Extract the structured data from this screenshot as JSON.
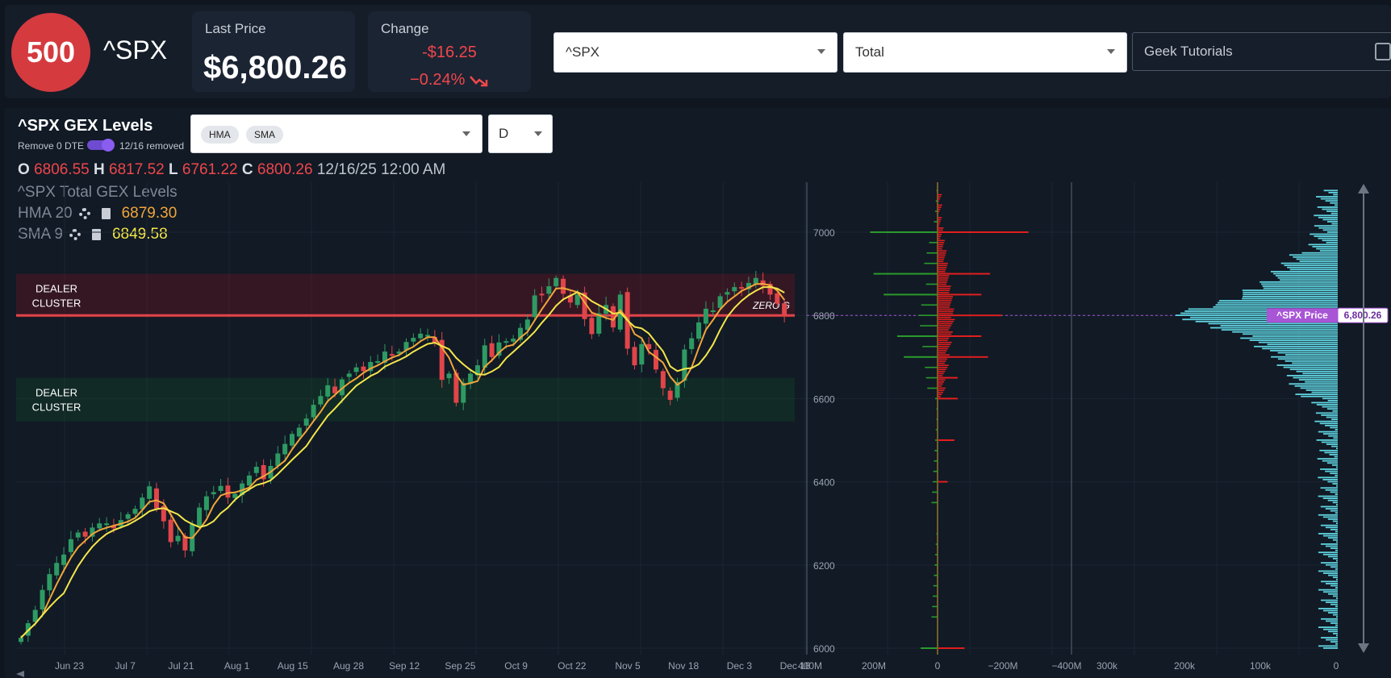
{
  "header": {
    "badge": "500",
    "ticker": "^SPX",
    "last_price_label": "Last Price",
    "last_price": "$6,800.26",
    "change_label": "Change",
    "change_abs": "-$16.25",
    "change_pct": "−0.24%",
    "symbol_select": "^SPX",
    "type_select": "Total",
    "tutorials": "Geek Tutorials"
  },
  "panel": {
    "title": "^SPX GEX Levels",
    "remove_label": "Remove 0 DTE",
    "removed_label": "12/16 removed",
    "indicators": [
      "HMA",
      "SMA"
    ],
    "interval": "D"
  },
  "ohlc": {
    "o_label": "O",
    "o": "6806.55",
    "h_label": "H",
    "h": "6817.52",
    "l_label": "L",
    "l": "6761.22",
    "c_label": "C",
    "c": "6800.26",
    "datetime": "12/16/25 12:00 AM"
  },
  "legend": {
    "series": "^SPX Total GEX Levels",
    "hma_label": "HMA",
    "hma_period": "20",
    "hma_value": "6879.30",
    "sma_label": "SMA",
    "sma_period": "9",
    "sma_value": "6849.58"
  },
  "colors": {
    "up": "#2e9a63",
    "down": "#e0454a",
    "hma": "#f2a53a",
    "sma": "#f5e64a",
    "gex_pos": "#2b9a2b",
    "gex_neg": "#e01e1e",
    "volume": "#5fd3e0",
    "price_tag": "#a855d6"
  },
  "chart_data": {
    "type": "candlestick",
    "x_labels": [
      "Jun 23",
      "Jul 7",
      "Jul 21",
      "Aug 1",
      "Aug 15",
      "Aug 28",
      "Sep 12",
      "Sep 25",
      "Oct 9",
      "Oct 22",
      "Nov 5",
      "Nov 18",
      "Dec 3",
      "Dec 16"
    ],
    "y_ticks": [
      6000,
      6200,
      6400,
      6600,
      6800,
      7000
    ],
    "ylim": [
      5995,
      7120
    ],
    "close_approx": [
      6025,
      6060,
      6092,
      6140,
      6178,
      6205,
      6225,
      6262,
      6278,
      6268,
      6290,
      6300,
      6300,
      6288,
      6308,
      6322,
      6335,
      6362,
      6389,
      6336,
      6305,
      6255,
      6270,
      6235,
      6298,
      6338,
      6365,
      6375,
      6390,
      6362,
      6371,
      6396,
      6415,
      6436,
      6406,
      6438,
      6468,
      6491,
      6515,
      6530,
      6552,
      6585,
      6606,
      6632,
      6613,
      6646,
      6660,
      6675,
      6666,
      6688,
      6690,
      6713,
      6703,
      6713,
      6736,
      6746,
      6756,
      6753,
      6735,
      6645,
      6660,
      6590,
      6638,
      6660,
      6680,
      6728,
      6700,
      6735,
      6738,
      6744,
      6770,
      6790,
      6848,
      6850,
      6870,
      6890,
      6852,
      6831,
      6850,
      6791,
      6755,
      6805,
      6825,
      6771,
      6850,
      6720,
      6680,
      6731,
      6719,
      6670,
      6625,
      6597,
      6640,
      6718,
      6745,
      6783,
      6816,
      6812,
      6846,
      6856,
      6868,
      6865,
      6878,
      6890,
      6871,
      6850,
      6828,
      6800
    ],
    "dealer_clusters": [
      {
        "label": "DEALER CLUSTER",
        "range": [
          6795,
          6900
        ]
      },
      {
        "label": "DEALER CLUSTER",
        "range": [
          6545,
          6650
        ]
      }
    ],
    "zero_gamma": {
      "label": "ZERO G",
      "value": 6800
    },
    "current_price": 6800,
    "gex_axis_ticks": [
      "400M",
      "200M",
      "0",
      "−200M",
      "−400M"
    ],
    "volume_axis_ticks": [
      "300k",
      "200k",
      "100k",
      "0"
    ],
    "price_label": "^SPX Price",
    "price_value": "6,800.26",
    "gex_positive_notable": [
      {
        "strike": 7000,
        "value": 100
      },
      {
        "strike": 6900,
        "value": 95
      },
      {
        "strike": 6850,
        "value": 80
      },
      {
        "strike": 6750,
        "value": 60
      },
      {
        "strike": 6700,
        "value": 50
      },
      {
        "strike": 6000,
        "value": 25
      }
    ],
    "gex_negative_notable": [
      {
        "strike": 7000,
        "value": -135
      },
      {
        "strike": 6900,
        "value": -78
      },
      {
        "strike": 6850,
        "value": -65
      },
      {
        "strike": 6800,
        "value": -95
      },
      {
        "strike": 6750,
        "value": -65
      },
      {
        "strike": 6700,
        "value": -75
      },
      {
        "strike": 6650,
        "value": -30
      },
      {
        "strike": 6600,
        "value": -30
      },
      {
        "strike": 6500,
        "value": -25
      },
      {
        "strike": 6400,
        "value": -15
      },
      {
        "strike": 6000,
        "value": -40
      }
    ]
  }
}
